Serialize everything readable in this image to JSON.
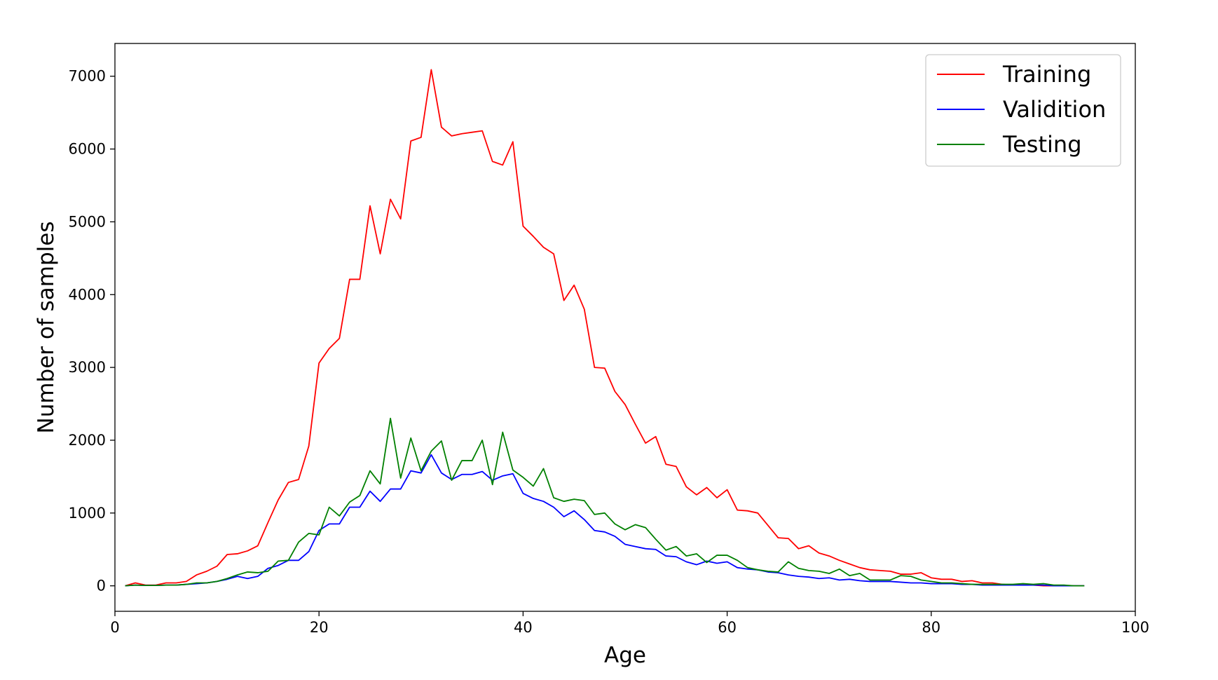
{
  "chart_data": {
    "type": "line",
    "xlabel": "Age",
    "ylabel": "Number of samples",
    "xlim": [
      0,
      100
    ],
    "ylim": [
      -350,
      7450
    ],
    "xticks": [
      0,
      20,
      40,
      60,
      80,
      100
    ],
    "yticks": [
      0,
      1000,
      2000,
      3000,
      4000,
      5000,
      6000,
      7000
    ],
    "grid": false,
    "legend_position": "top-right",
    "x": [
      1,
      2,
      3,
      4,
      5,
      6,
      7,
      8,
      9,
      10,
      11,
      12,
      13,
      14,
      15,
      16,
      17,
      18,
      19,
      20,
      21,
      22,
      23,
      24,
      25,
      26,
      27,
      28,
      29,
      30,
      31,
      32,
      33,
      34,
      35,
      36,
      37,
      38,
      39,
      40,
      41,
      42,
      43,
      44,
      45,
      46,
      47,
      48,
      49,
      50,
      51,
      52,
      53,
      54,
      55,
      56,
      57,
      58,
      59,
      60,
      61,
      62,
      63,
      64,
      65,
      66,
      67,
      68,
      69,
      70,
      71,
      72,
      73,
      74,
      75,
      76,
      77,
      78,
      79,
      80,
      81,
      82,
      83,
      84,
      85,
      86,
      87,
      88,
      89,
      90,
      91,
      92,
      93,
      94,
      95
    ],
    "series": [
      {
        "name": "Training",
        "color": "#ff0000",
        "values": [
          0,
          40,
          10,
          10,
          40,
          40,
          60,
          150,
          200,
          270,
          430,
          440,
          480,
          550,
          870,
          1180,
          1420,
          1460,
          1920,
          3060,
          3260,
          3400,
          4210,
          4210,
          5220,
          4560,
          5310,
          5040,
          6110,
          6160,
          7090,
          6300,
          6180,
          6210,
          6230,
          6250,
          5830,
          5780,
          6100,
          4940,
          4800,
          4650,
          4560,
          3920,
          4130,
          3800,
          3000,
          2990,
          2670,
          2490,
          2220,
          1960,
          2050,
          1670,
          1640,
          1360,
          1250,
          1350,
          1210,
          1320,
          1040,
          1030,
          1000,
          830,
          660,
          650,
          510,
          550,
          450,
          410,
          350,
          300,
          250,
          220,
          210,
          200,
          160,
          160,
          180,
          110,
          90,
          90,
          60,
          70,
          40,
          40,
          20,
          10,
          10,
          10,
          0,
          0,
          0,
          0,
          0
        ]
      },
      {
        "name": "Validition",
        "color": "#0000ff",
        "values": [
          0,
          10,
          5,
          5,
          10,
          10,
          20,
          30,
          40,
          60,
          90,
          130,
          100,
          130,
          240,
          280,
          350,
          350,
          470,
          760,
          850,
          850,
          1080,
          1080,
          1300,
          1160,
          1330,
          1330,
          1580,
          1550,
          1800,
          1550,
          1460,
          1530,
          1530,
          1570,
          1450,
          1510,
          1540,
          1270,
          1200,
          1160,
          1080,
          950,
          1030,
          910,
          760,
          740,
          680,
          570,
          540,
          510,
          500,
          410,
          400,
          330,
          290,
          340,
          310,
          330,
          250,
          230,
          220,
          190,
          180,
          150,
          130,
          120,
          100,
          110,
          80,
          90,
          70,
          60,
          60,
          60,
          50,
          40,
          40,
          30,
          30,
          30,
          20,
          20,
          10,
          10,
          10,
          10,
          10,
          10,
          10,
          0,
          0,
          0,
          0
        ]
      },
      {
        "name": "Testing",
        "color": "#008000",
        "values": [
          0,
          10,
          5,
          5,
          10,
          10,
          20,
          40,
          40,
          60,
          100,
          150,
          190,
          180,
          200,
          340,
          350,
          600,
          720,
          700,
          1080,
          960,
          1150,
          1240,
          1580,
          1400,
          2300,
          1480,
          2030,
          1580,
          1850,
          1990,
          1450,
          1720,
          1720,
          2000,
          1390,
          2110,
          1590,
          1490,
          1370,
          1610,
          1210,
          1160,
          1190,
          1170,
          980,
          1000,
          850,
          770,
          840,
          800,
          640,
          490,
          540,
          410,
          440,
          320,
          420,
          420,
          350,
          250,
          220,
          200,
          190,
          330,
          240,
          210,
          200,
          170,
          230,
          140,
          170,
          80,
          80,
          80,
          140,
          130,
          80,
          60,
          40,
          40,
          30,
          20,
          20,
          20,
          20,
          20,
          30,
          20,
          30,
          10,
          10,
          0,
          0
        ]
      }
    ]
  }
}
